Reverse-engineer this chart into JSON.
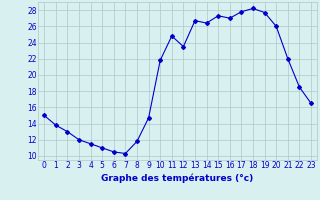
{
  "hours": [
    0,
    1,
    2,
    3,
    4,
    5,
    6,
    7,
    8,
    9,
    10,
    11,
    12,
    13,
    14,
    15,
    16,
    17,
    18,
    19,
    20,
    21,
    22,
    23
  ],
  "temperatures": [
    15.0,
    13.8,
    13.0,
    12.0,
    11.5,
    11.0,
    10.5,
    10.3,
    11.8,
    14.7,
    21.8,
    24.8,
    23.5,
    26.7,
    26.4,
    27.3,
    27.0,
    27.8,
    28.2,
    27.7,
    26.0,
    22.0,
    18.5,
    16.5
  ],
  "line_color": "#0000cc",
  "marker": "D",
  "marker_size": 2.0,
  "bg_color": "#d8f0f0",
  "grid_color": "#aec8c8",
  "xlabel": "Graphe des températures (°c)",
  "xlabel_color": "#0000cc",
  "tick_color": "#0000cc",
  "ylim": [
    9.5,
    29.0
  ],
  "yticks": [
    10,
    12,
    14,
    16,
    18,
    20,
    22,
    24,
    26,
    28
  ],
  "xticks": [
    0,
    1,
    2,
    3,
    4,
    5,
    6,
    7,
    8,
    9,
    10,
    11,
    12,
    13,
    14,
    15,
    16,
    17,
    18,
    19,
    20,
    21,
    22,
    23
  ],
  "axis_label_fontsize": 6.5,
  "tick_fontsize": 5.5
}
